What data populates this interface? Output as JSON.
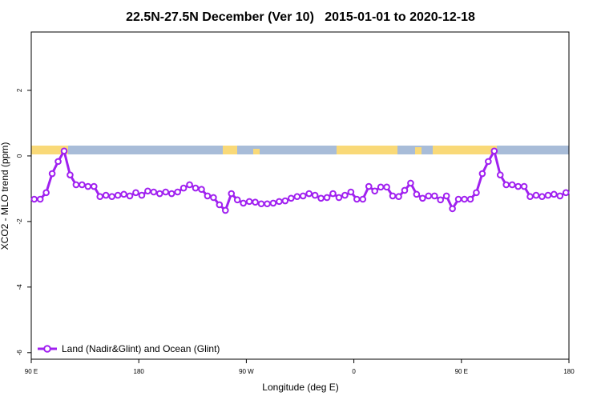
{
  "chart_data": {
    "type": "line",
    "title": "22.5N-27.5N December (Ver 10)   2015-01-01 to 2020-12-18",
    "xlabel": "Longitude (deg E)",
    "ylabel": "XCO2 - MLO trend (ppm)",
    "xlim": [
      90,
      540
    ],
    "ylim": [
      -6.2,
      3.78
    ],
    "xticks": [
      {
        "value": 90,
        "label": "90 E"
      },
      180,
      {
        "value": 270,
        "label": "90 W"
      },
      {
        "value": 360,
        "label": "0"
      },
      {
        "value": 450,
        "label": "90 E"
      },
      {
        "value": 540,
        "label": "180"
      }
    ],
    "yticks": [
      -6,
      -4,
      -2,
      0,
      2
    ],
    "legend": "bottom-left",
    "x": [
      92.5,
      97.5,
      102.5,
      107.5,
      112.5,
      117.5,
      122.5,
      127.5,
      132.5,
      137.5,
      142.5,
      147.5,
      152.5,
      157.5,
      162.5,
      167.5,
      172.5,
      177.5,
      182.5,
      187.5,
      192.5,
      197.5,
      202.5,
      207.5,
      212.5,
      217.5,
      222.5,
      227.5,
      232.5,
      237.5,
      242.5,
      247.5,
      252.5,
      257.5,
      262.5,
      267.5,
      272.5,
      277.5,
      282.5,
      287.5,
      292.5,
      297.5,
      302.5,
      307.5,
      312.5,
      317.5,
      322.5,
      327.5,
      332.5,
      337.5,
      342.5,
      347.5,
      352.5,
      357.5,
      362.5,
      367.5,
      372.5,
      377.5,
      382.5,
      387.5,
      392.5,
      397.5,
      402.5,
      407.5,
      412.5,
      417.5,
      422.5,
      427.5,
      432.5,
      437.5,
      442.5,
      447.5,
      452.5,
      457.5,
      462.5,
      467.5,
      472.5,
      477.5,
      482.5,
      487.5,
      492.5,
      497.5,
      502.5,
      507.5,
      512.5,
      517.5,
      522.5,
      527.5,
      532.5,
      537.5
    ],
    "series": [
      {
        "name": "Land (Nadir&Glint) and Ocean (Glint)",
        "color": "#a020f0",
        "values": [
          -1.32,
          -1.32,
          -1.12,
          -0.54,
          -0.17,
          0.15,
          -0.58,
          -0.88,
          -0.88,
          -0.93,
          -0.93,
          -1.24,
          -1.2,
          -1.24,
          -1.2,
          -1.17,
          -1.22,
          -1.12,
          -1.2,
          -1.07,
          -1.1,
          -1.15,
          -1.1,
          -1.15,
          -1.1,
          -0.98,
          -0.88,
          -0.98,
          -1.02,
          -1.22,
          -1.27,
          -1.49,
          -1.66,
          -1.15,
          -1.34,
          -1.44,
          -1.39,
          -1.41,
          -1.46,
          -1.46,
          -1.44,
          -1.39,
          -1.37,
          -1.29,
          -1.24,
          -1.22,
          -1.15,
          -1.2,
          -1.29,
          -1.27,
          -1.15,
          -1.27,
          -1.2,
          -1.1,
          -1.32,
          -1.32,
          -0.93,
          -1.07,
          -0.95,
          -0.95,
          -1.22,
          -1.24,
          -1.05,
          -0.83,
          -1.17,
          -1.29,
          -1.22,
          -1.22,
          -1.34,
          -1.22,
          -1.61,
          -1.32,
          -1.32,
          -1.32,
          -1.12,
          -0.54,
          -0.17,
          0.15,
          -0.58,
          -0.88,
          -0.88,
          -0.93,
          -0.93,
          -1.24,
          -1.2,
          -1.24,
          -1.2,
          -1.17,
          -1.22,
          -1.12
        ]
      }
    ]
  }
}
